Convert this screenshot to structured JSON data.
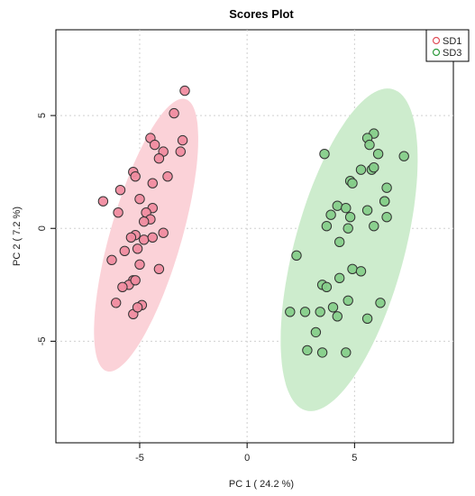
{
  "chart_data": {
    "type": "scatter",
    "title": "Scores Plot",
    "xlabel": "PC 1 ( 24.2 %)",
    "ylabel": "PC 2 ( 7.2 %)",
    "xlim": [
      -8.9,
      9.6
    ],
    "ylim": [
      -9.5,
      8.8
    ],
    "xticks": [
      -5,
      0,
      5
    ],
    "yticks": [
      -5,
      0,
      5
    ],
    "grid": true,
    "legend_position": "top-right",
    "series": [
      {
        "name": "SD1",
        "fill": "#f08ca0",
        "stroke": "#e0505a",
        "ellipse_color": "#fbd2d8",
        "ellipse": {
          "cx": -4.7,
          "cy": -0.3,
          "rx": 6.3,
          "ry": 1.65,
          "angle_deg": 73
        },
        "x": [
          -2.9,
          -3.4,
          -4.5,
          -4.3,
          -3.9,
          -3.0,
          -4.1,
          -3.1,
          -5.3,
          -4.4,
          -3.7,
          -5.2,
          -5.9,
          -6.7,
          -5.0,
          -4.4,
          -4.7,
          -4.5,
          -6.0,
          -4.8,
          -5.2,
          -5.4,
          -4.8,
          -5.1,
          -5.7,
          -6.3,
          -4.1,
          -5.0,
          -5.3,
          -5.5,
          -5.8,
          -5.2,
          -4.9,
          -6.1,
          -5.3,
          -5.1,
          -4.4,
          -3.9
        ],
        "y": [
          6.1,
          5.1,
          4.0,
          3.7,
          3.4,
          3.9,
          3.1,
          3.4,
          2.5,
          2.0,
          2.3,
          2.3,
          1.7,
          1.2,
          1.3,
          0.9,
          0.7,
          0.4,
          0.7,
          0.3,
          -0.3,
          -0.4,
          -0.5,
          -0.9,
          -1.0,
          -1.4,
          -1.8,
          -1.6,
          -2.3,
          -2.5,
          -2.6,
          -2.3,
          -3.4,
          -3.3,
          -3.8,
          -3.5,
          -0.4,
          -0.2
        ]
      },
      {
        "name": "SD3",
        "fill": "#86cf8a",
        "stroke": "#2f9a3d",
        "ellipse_color": "#cdeccd",
        "ellipse": {
          "cx": 4.75,
          "cy": -0.95,
          "rx": 7.4,
          "ry": 2.55,
          "angle_deg": 74
        },
        "x": [
          5.9,
          5.6,
          5.7,
          6.1,
          7.3,
          3.6,
          5.3,
          5.8,
          5.9,
          4.8,
          4.9,
          6.5,
          6.4,
          6.4,
          4.2,
          4.6,
          5.6,
          3.9,
          4.8,
          6.5,
          3.7,
          4.7,
          5.9,
          4.3,
          2.3,
          4.9,
          5.3,
          4.3,
          3.5,
          3.7,
          4.7,
          6.2,
          2.0,
          2.7,
          3.4,
          4.0,
          4.2,
          5.6,
          3.2,
          2.8,
          3.5,
          4.6
        ],
        "y": [
          4.2,
          4.0,
          3.7,
          3.3,
          3.2,
          3.3,
          2.6,
          2.6,
          2.7,
          2.1,
          2.0,
          1.8,
          1.2,
          1.2,
          1.0,
          0.9,
          0.8,
          0.6,
          0.5,
          0.5,
          0.1,
          0.0,
          0.1,
          -0.6,
          -1.2,
          -1.8,
          -1.9,
          -2.2,
          -2.5,
          -2.6,
          -3.2,
          -3.3,
          -3.7,
          -3.7,
          -3.7,
          -3.5,
          -3.9,
          -4.0,
          -4.6,
          -5.4,
          -5.5,
          -5.5
        ]
      }
    ]
  }
}
